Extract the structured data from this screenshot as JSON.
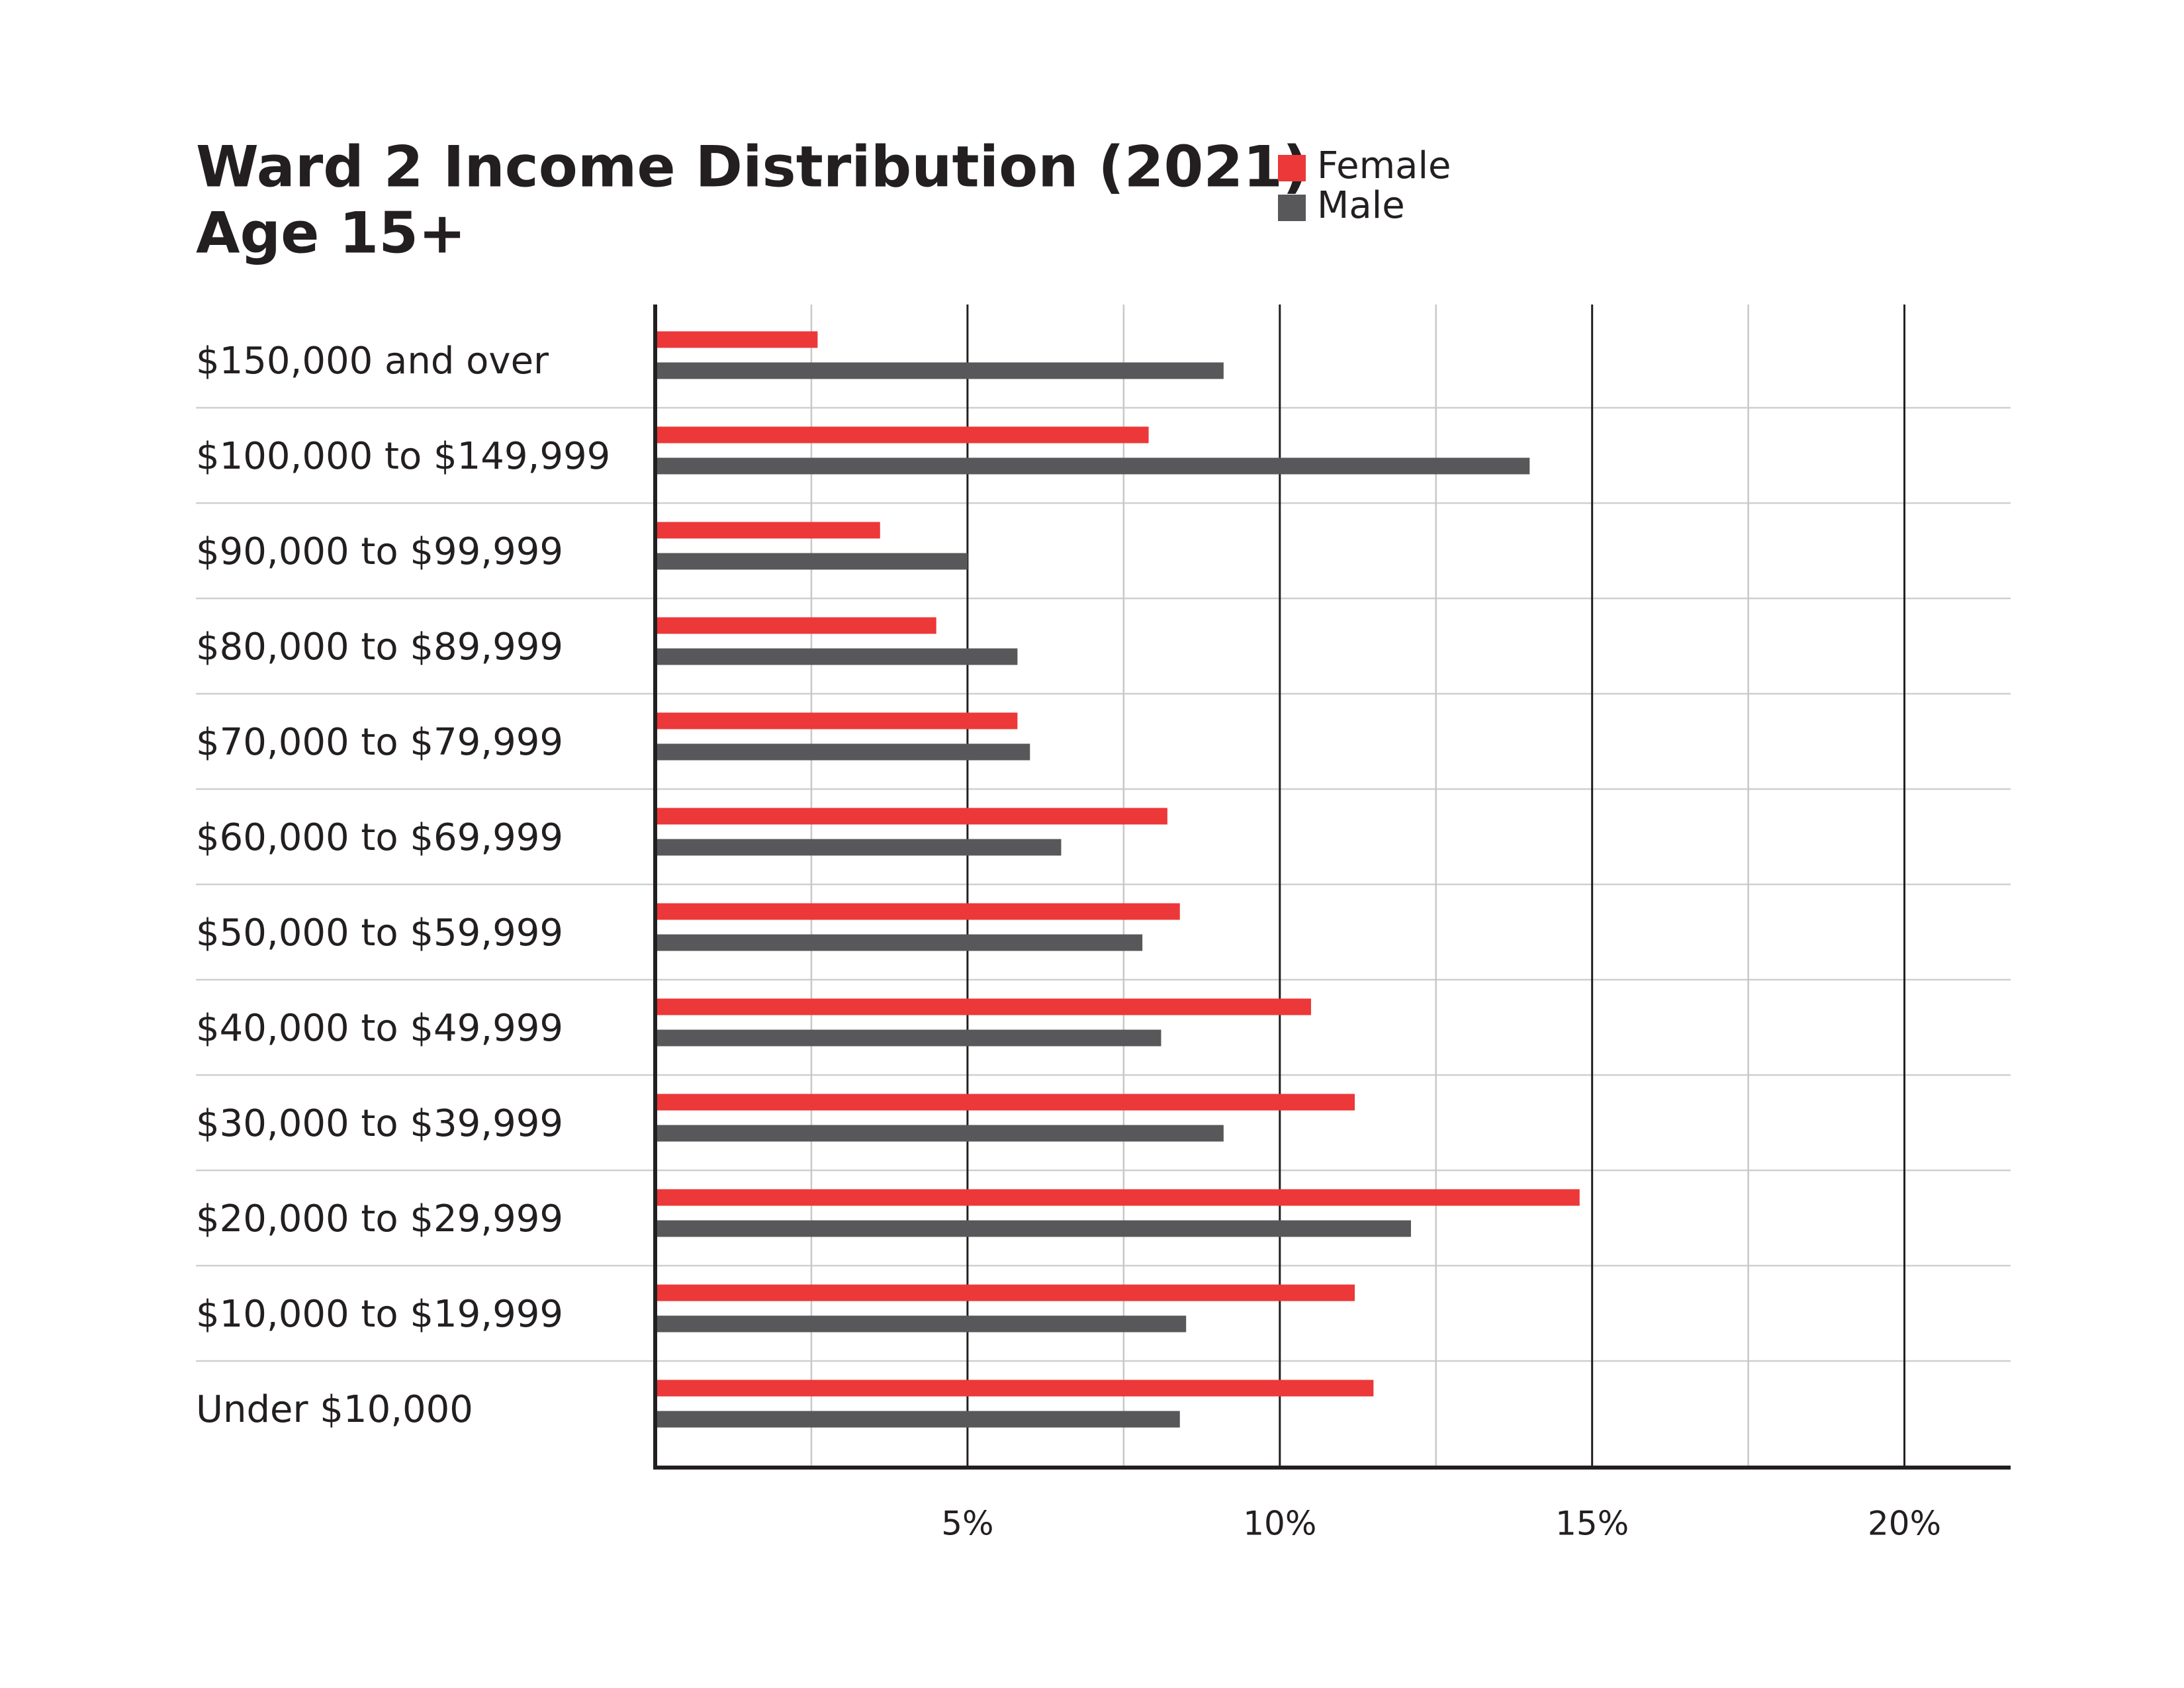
{
  "chart_data": {
    "type": "bar",
    "orientation": "horizontal",
    "title": "Ward 2 Income Distribution (2021)",
    "subtitle": "Age 15+",
    "categories": [
      "$150,000 and over",
      "$100,000 to $149,999",
      "$90,000 to $99,999",
      "$80,000 to $89,999",
      "$70,000 to $79,999",
      "$60,000 to $69,999",
      "$50,000 to $59,999",
      "$40,000 to $49,999",
      "$30,000 to $39,999",
      "$20,000 to $29,999",
      "$10,000 to $19,999",
      "Under $10,000"
    ],
    "series": [
      {
        "name": "Female",
        "color": "#ec3838",
        "values": [
          2.6,
          7.9,
          3.6,
          4.5,
          5.8,
          8.2,
          8.4,
          10.5,
          11.2,
          14.8,
          11.2,
          11.5
        ]
      },
      {
        "name": "Male",
        "color": "#58585a",
        "values": [
          9.1,
          14.0,
          5.0,
          5.8,
          6.0,
          6.5,
          7.8,
          8.1,
          9.1,
          12.1,
          8.5,
          8.4
        ]
      }
    ],
    "xlim": [
      0,
      21.7
    ],
    "xticks": [
      {
        "value": 5,
        "label": "5%"
      },
      {
        "value": 10,
        "label": "10%"
      },
      {
        "value": 15,
        "label": "15%"
      },
      {
        "value": 20,
        "label": "20%"
      }
    ],
    "minor_xticks": [
      2.5,
      7.5,
      12.5,
      17.5
    ],
    "grid": true,
    "legend": "top"
  }
}
